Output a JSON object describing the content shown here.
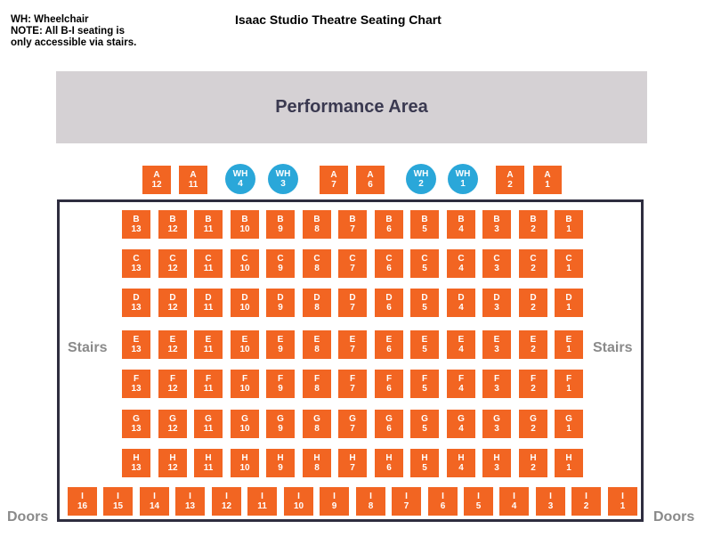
{
  "legend": {
    "line1": "WH: Wheelchair",
    "line2": "NOTE: All B-I seating is\nonly accessible via stairs."
  },
  "title": "Isaac Studio Theatre Seating Chart",
  "stage_label": "Performance Area",
  "side_labels": {
    "stairs_left": "Stairs",
    "stairs_right": "Stairs",
    "doors_left": "Doors",
    "doors_right": "Doors"
  },
  "colors": {
    "seat": "#f26522",
    "wheelchair": "#2aa7d9",
    "stage": "#d5d1d4",
    "frame": "#2e2d3f"
  },
  "row_a": [
    {
      "type": "seat",
      "row": "A",
      "num": "12"
    },
    {
      "type": "seat",
      "row": "A",
      "num": "11"
    },
    {
      "type": "wh",
      "row": "WH",
      "num": "4"
    },
    {
      "type": "wh",
      "row": "WH",
      "num": "3"
    },
    {
      "type": "seat",
      "row": "A",
      "num": "7"
    },
    {
      "type": "seat",
      "row": "A",
      "num": "6"
    },
    {
      "type": "wh",
      "row": "WH",
      "num": "2"
    },
    {
      "type": "wh",
      "row": "WH",
      "num": "1"
    },
    {
      "type": "seat",
      "row": "A",
      "num": "2"
    },
    {
      "type": "seat",
      "row": "A",
      "num": "1"
    }
  ],
  "grid_rows": [
    "B",
    "C",
    "D",
    "E",
    "F",
    "G",
    "H"
  ],
  "grid_numbers": [
    "13",
    "12",
    "11",
    "10",
    "9",
    "8",
    "7",
    "6",
    "5",
    "4",
    "3",
    "2",
    "1"
  ],
  "row_i": {
    "row": "I",
    "numbers": [
      "16",
      "15",
      "14",
      "13",
      "12",
      "11",
      "10",
      "9",
      "8",
      "7",
      "6",
      "5",
      "4",
      "3",
      "2",
      "1"
    ]
  }
}
